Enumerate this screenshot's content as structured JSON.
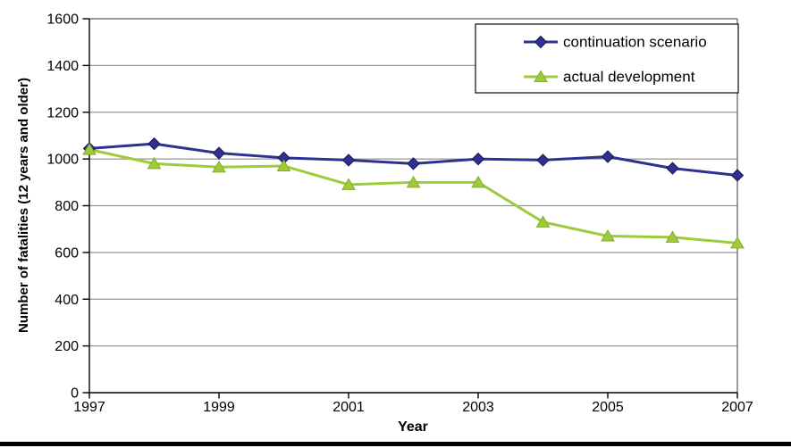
{
  "figure": {
    "background": "#ffffff",
    "bottom_rule_color": "#000000"
  },
  "chart_data": {
    "type": "line",
    "title": "",
    "xlabel": "Year",
    "ylabel": "Number of fatalities (12 years and older)",
    "x": [
      1997,
      1998,
      1999,
      2000,
      2001,
      2002,
      2003,
      2004,
      2005,
      2006,
      2007
    ],
    "xlim": [
      1997,
      2007
    ],
    "ylim": [
      0,
      1600
    ],
    "y_ticks": [
      0,
      200,
      400,
      600,
      800,
      1000,
      1200,
      1400,
      1600
    ],
    "x_tick_labels": [
      "1997",
      "1999",
      "2001",
      "2003",
      "2005",
      "2007"
    ],
    "grid": "horizontal",
    "legend": {
      "position": "top-right-inside",
      "background": "#ffffff",
      "border_color": "#1a1a1a"
    },
    "series": [
      {
        "name": "continuation scenario",
        "marker": "diamond",
        "color": "#2E3192",
        "marker_edge": "#15194f",
        "values": [
          1045,
          1065,
          1025,
          1005,
          995,
          980,
          1000,
          995,
          1010,
          960,
          930
        ]
      },
      {
        "name": "actual development",
        "marker": "triangle",
        "color": "#9DCB3B",
        "marker_edge": "#84ad2b",
        "values": [
          1040,
          980,
          965,
          970,
          890,
          900,
          900,
          730,
          670,
          665,
          640
        ]
      }
    ],
    "colors": {
      "gridline": "#969696",
      "plot_border": "#5a5a5a",
      "axis": "#000000",
      "text": "#000000"
    }
  }
}
